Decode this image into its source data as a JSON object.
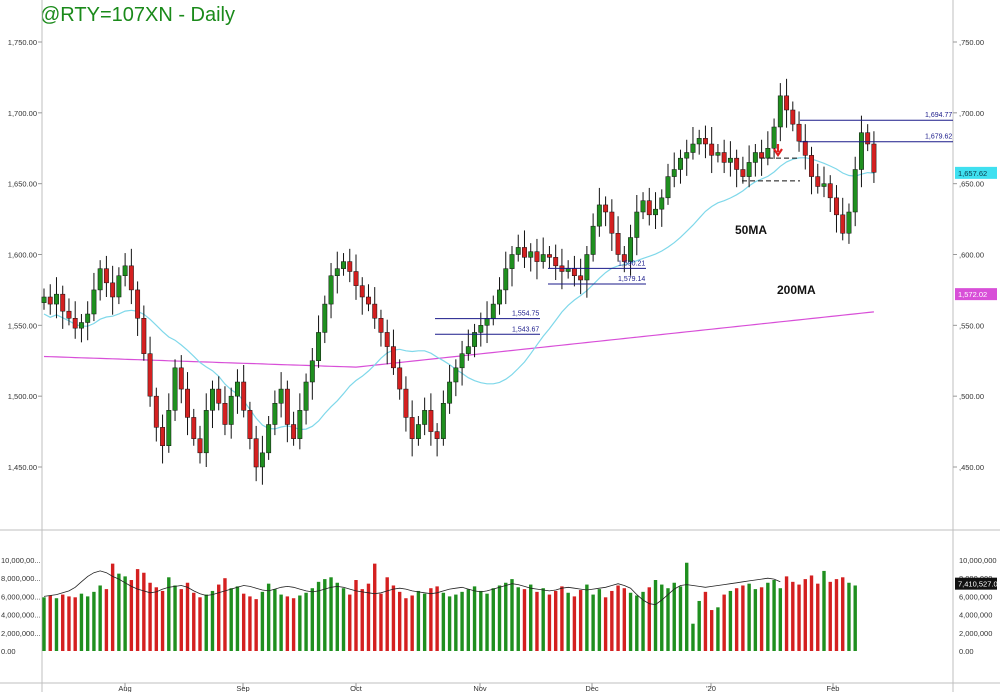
{
  "chart_data": {
    "type": "candlestick",
    "title": "@RTY=107XN - Daily",
    "price_axis": {
      "ylim": [
        1430,
        1770
      ],
      "ticks": [
        "1,750.00",
        "1,700.00",
        "1,650.00",
        "1,600.00",
        "1,550.00",
        "1,500.00",
        "1,450.00"
      ],
      "right_ticks": [
        ",750.00",
        ",700.00",
        ",650.00",
        ",600.00",
        ",550.00",
        ",500.00",
        ",450.00"
      ]
    },
    "volume_axis": {
      "ylim": [
        0,
        11000000
      ],
      "ticks": [
        "10,000,00...",
        "8,000,000...",
        "6,000,000...",
        "4,000,000...",
        "2,000,000...",
        "0.00"
      ],
      "right_ticks": [
        "10,000,000",
        "8,000,000",
        "6,000,000",
        "4,000,000",
        "2,000,000",
        "0.00"
      ]
    },
    "x_axis_labels": [
      "Aug",
      "Sep",
      "Oct",
      "Nov",
      "Dec",
      "'20",
      "Feb"
    ],
    "last_price_label": "1,657.62",
    "ma200_label": "1,572.02",
    "volume_label": "7,410,527.0",
    "moving_averages": [
      {
        "name": "50MA",
        "color": "#7fd8ea",
        "label": "50MA"
      },
      {
        "name": "200MA",
        "color": "#d84fd8",
        "label": "200MA"
      }
    ],
    "levels": [
      {
        "value": 1694.77,
        "label": "1,694.77"
      },
      {
        "value": 1679.62,
        "label": "1,679.62"
      },
      {
        "value": 1590.21,
        "label": "1,590.21"
      },
      {
        "value": 1579.14,
        "label": "1,579.14"
      },
      {
        "value": 1554.75,
        "label": "1,554.75"
      },
      {
        "value": 1543.67,
        "label": "1,543.67"
      }
    ],
    "price_path": [
      1570,
      1565,
      1572,
      1560,
      1555,
      1548,
      1552,
      1558,
      1575,
      1590,
      1580,
      1570,
      1585,
      1592,
      1575,
      1555,
      1530,
      1500,
      1478,
      1465,
      1490,
      1520,
      1505,
      1485,
      1470,
      1460,
      1490,
      1505,
      1495,
      1480,
      1500,
      1510,
      1490,
      1470,
      1450,
      1460,
      1480,
      1495,
      1505,
      1480,
      1470,
      1490,
      1510,
      1525,
      1545,
      1565,
      1585,
      1590,
      1595,
      1588,
      1578,
      1570,
      1565,
      1555,
      1545,
      1535,
      1520,
      1505,
      1485,
      1470,
      1480,
      1490,
      1475,
      1470,
      1495,
      1510,
      1520,
      1530,
      1535,
      1545,
      1550,
      1555,
      1565,
      1575,
      1590,
      1600,
      1605,
      1598,
      1602,
      1595,
      1600,
      1598,
      1592,
      1588,
      1590,
      1585,
      1582,
      1600,
      1620,
      1635,
      1630,
      1615,
      1600,
      1595,
      1612,
      1630,
      1638,
      1628,
      1632,
      1640,
      1655,
      1660,
      1668,
      1672,
      1678,
      1682,
      1678,
      1670,
      1672,
      1665,
      1668,
      1660,
      1655,
      1665,
      1672,
      1668,
      1675,
      1690,
      1712,
      1702,
      1692,
      1680,
      1670,
      1655,
      1648,
      1650,
      1640,
      1628,
      1615,
      1630,
      1660,
      1686,
      1678,
      1658
    ],
    "volume_values": [
      5.9,
      6.1,
      5.8,
      6.2,
      6.0,
      5.9,
      6.3,
      6.0,
      6.5,
      7.2,
      6.8,
      9.6,
      8.5,
      8.2,
      7.8,
      9.0,
      8.6,
      7.5,
      7.0,
      6.6,
      8.1,
      7.2,
      6.8,
      7.5,
      6.4,
      5.9,
      6.2,
      6.6,
      7.3,
      8.0,
      6.9,
      7.1,
      6.3,
      6.0,
      5.7,
      6.5,
      7.4,
      6.8,
      6.2,
      6.0,
      5.8,
      6.1,
      6.4,
      6.9,
      7.6,
      7.9,
      8.1,
      7.5,
      6.9,
      6.2,
      7.8,
      6.8,
      7.4,
      9.6,
      6.3,
      8.1,
      7.2,
      6.5,
      5.8,
      6.1,
      6.6,
      6.3,
      6.9,
      7.1,
      6.4,
      6.0,
      6.2,
      6.5,
      6.8,
      7.1,
      6.6,
      6.3,
      6.9,
      7.2,
      7.5,
      7.9,
      7.0,
      6.8,
      7.3,
      6.5,
      6.9,
      6.2,
      6.6,
      7.1,
      6.4,
      6.0,
      6.7,
      7.3,
      6.2,
      6.8,
      5.9,
      6.6,
      7.2,
      6.9,
      6.4,
      6.1,
      6.5,
      7.0,
      7.8,
      7.3,
      6.9,
      7.5,
      7.1,
      9.7,
      3.0,
      5.5,
      6.5,
      4.5,
      4.8,
      6.2,
      6.6,
      6.9,
      7.2,
      7.4,
      6.8,
      7.0,
      7.5,
      7.8,
      6.9,
      8.2,
      7.6,
      7.3,
      7.9,
      8.3,
      7.4,
      8.8,
      7.6,
      7.9,
      8.1,
      7.5,
      7.2
    ],
    "volume_ma_path": [
      6.0,
      6.1,
      6.2,
      6.4,
      6.6,
      7.0,
      7.6,
      8.2,
      8.6,
      8.8,
      8.6,
      8.2,
      7.9,
      7.5,
      7.1,
      6.8,
      6.6,
      6.4,
      6.5,
      6.8,
      7.0,
      7.1,
      7.2,
      7.0,
      6.6,
      6.3,
      6.1,
      6.2,
      6.4,
      6.6,
      6.8,
      7.0,
      7.2,
      7.1,
      6.9,
      6.7,
      6.6,
      6.8,
      7.0,
      7.1,
      7.0,
      6.8,
      6.6,
      6.5,
      6.6,
      6.8,
      7.0,
      7.1,
      7.0,
      6.8,
      6.6,
      6.5,
      6.4,
      6.3,
      6.4,
      6.6,
      6.8,
      6.9,
      6.8,
      6.6,
      6.5,
      6.4,
      6.3,
      6.4,
      6.6,
      6.8,
      6.9,
      7.0,
      6.8,
      6.6,
      6.5,
      6.6,
      6.8,
      7.0,
      7.2,
      7.4,
      7.3,
      7.1,
      6.9,
      6.8,
      6.7,
      6.6,
      6.7,
      6.9,
      7.0,
      6.9,
      6.8,
      6.7,
      6.8,
      6.9,
      7.0,
      7.2,
      7.4,
      7.2,
      6.9,
      6.2,
      5.6,
      5.2,
      5.1,
      5.6,
      6.2,
      6.8,
      7.2,
      7.3,
      7.2,
      7.1,
      7.0,
      7.1,
      7.2,
      7.3,
      7.4,
      7.5,
      7.6,
      7.7,
      7.8,
      7.9,
      8.0,
      7.9,
      7.6
    ]
  }
}
